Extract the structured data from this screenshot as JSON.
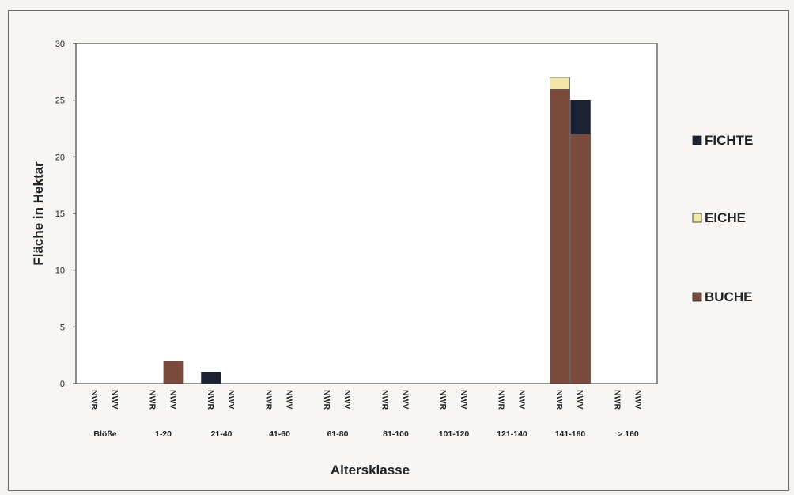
{
  "chart_data": {
    "type": "bar",
    "stacked": true,
    "ylabel": "Fläche in Hektar",
    "xlabel": "Altersklasse",
    "ylim": [
      0,
      30
    ],
    "yticks": [
      0,
      5,
      10,
      15,
      20,
      25,
      30
    ],
    "groups": [
      "Blöße",
      "1-20",
      "21-40",
      "41-60",
      "61-80",
      "81-100",
      "101-120",
      "121-140",
      "141-160",
      "> 160"
    ],
    "subcategories": [
      "NWR",
      "NWV"
    ],
    "series": [
      {
        "name": "BUCHE",
        "color": "#7a4b3c",
        "values": [
          [
            0,
            0
          ],
          [
            0,
            2
          ],
          [
            0,
            0
          ],
          [
            0,
            0
          ],
          [
            0,
            0
          ],
          [
            0,
            0
          ],
          [
            0,
            0
          ],
          [
            0,
            0
          ],
          [
            26,
            22
          ],
          [
            0,
            0
          ]
        ]
      },
      {
        "name": "EICHE",
        "color": "#f2e7a6",
        "values": [
          [
            0,
            0
          ],
          [
            0,
            0
          ],
          [
            0,
            0
          ],
          [
            0,
            0
          ],
          [
            0,
            0
          ],
          [
            0,
            0
          ],
          [
            0,
            0
          ],
          [
            0,
            0
          ],
          [
            1,
            0
          ],
          [
            0,
            0
          ]
        ]
      },
      {
        "name": "FICHTE",
        "color": "#1b2233",
        "values": [
          [
            0,
            0
          ],
          [
            0,
            0
          ],
          [
            1,
            0
          ],
          [
            0,
            0
          ],
          [
            0,
            0
          ],
          [
            0,
            0
          ],
          [
            0,
            0
          ],
          [
            0,
            0
          ],
          [
            0,
            3
          ],
          [
            0,
            0
          ]
        ]
      }
    ],
    "legend_order": [
      "FICHTE",
      "EICHE",
      "BUCHE"
    ],
    "legend_position": "right",
    "grid": false
  }
}
